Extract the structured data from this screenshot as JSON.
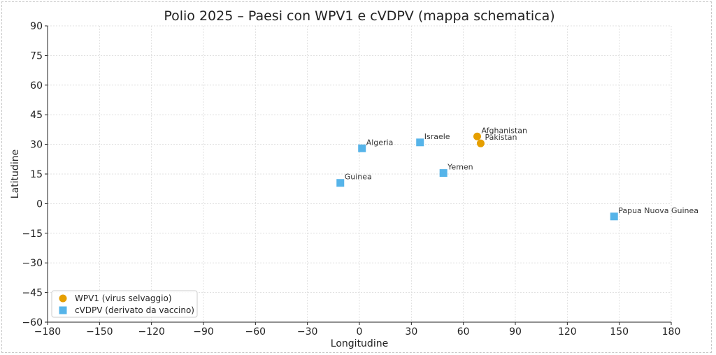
{
  "chart_data": {
    "type": "scatter",
    "title": "Polio 2025 – Paesi con WPV1 e cVDPV (mappa schematica)",
    "xlabel": "Longitudine",
    "ylabel": "Latitudine",
    "xlim": [
      -180,
      180
    ],
    "ylim": [
      -60,
      90
    ],
    "xticks": [
      -180,
      -150,
      -120,
      -90,
      -60,
      -30,
      0,
      30,
      60,
      90,
      120,
      150,
      180
    ],
    "yticks": [
      -60,
      -45,
      -30,
      -15,
      0,
      15,
      30,
      45,
      60,
      75,
      90
    ],
    "grid": true,
    "legend_position": "bottom-left",
    "series": [
      {
        "name": "WPV1 (virus selvaggio)",
        "marker": "circle",
        "color": "#e69f00",
        "points": [
          {
            "label": "Afghanistan",
            "x": 68,
            "y": 34
          },
          {
            "label": "Pakistan",
            "x": 70,
            "y": 30.5
          }
        ]
      },
      {
        "name": "cVDPV (derivato da vaccino)",
        "marker": "square",
        "color": "#56b4e9",
        "points": [
          {
            "label": "Algeria",
            "x": 1.5,
            "y": 28
          },
          {
            "label": "Israele",
            "x": 35,
            "y": 31
          },
          {
            "label": "Yemen",
            "x": 48.5,
            "y": 15.5
          },
          {
            "label": "Guinea",
            "x": -11,
            "y": 10.5
          },
          {
            "label": "Papua Nuova Guinea",
            "x": 147,
            "y": -6.5
          }
        ]
      }
    ]
  }
}
